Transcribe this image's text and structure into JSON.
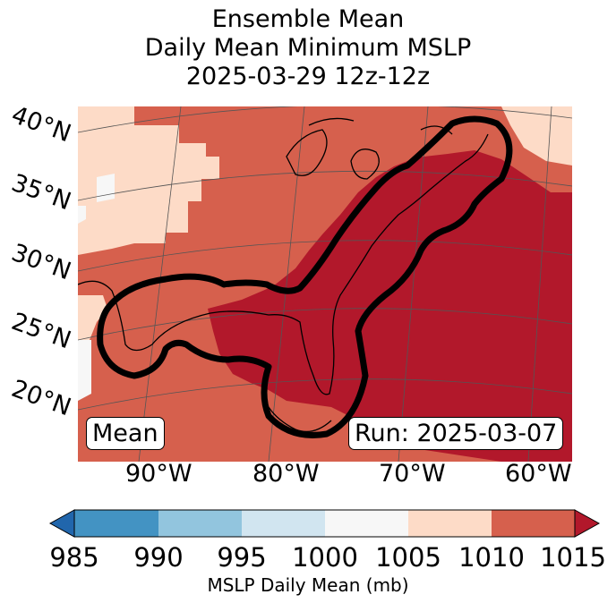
{
  "title": {
    "line1": "Ensemble Mean",
    "line2": "Daily Mean Minimum MSLP",
    "line3": "2025-03-29 12z-12z"
  },
  "map": {
    "lat_labels": [
      "40°N",
      "35°N",
      "30°N",
      "25°N",
      "20°N"
    ],
    "lon_labels": [
      "90°W",
      "80°W",
      "70°W",
      "60°W"
    ],
    "left_box": "Mean",
    "right_box": "Run: 2025-03-07",
    "contour_color": "#000000"
  },
  "colorbar": {
    "label": "MSLP Daily Mean (mb)",
    "ticks": [
      "985",
      "990",
      "995",
      "1000",
      "1005",
      "1010",
      "1015"
    ],
    "colors": [
      "#2166ac",
      "#4393c3",
      "#92c5de",
      "#d1e5f0",
      "#f7f7f7",
      "#fddbc7",
      "#d6604d",
      "#b2182b"
    ]
  }
}
